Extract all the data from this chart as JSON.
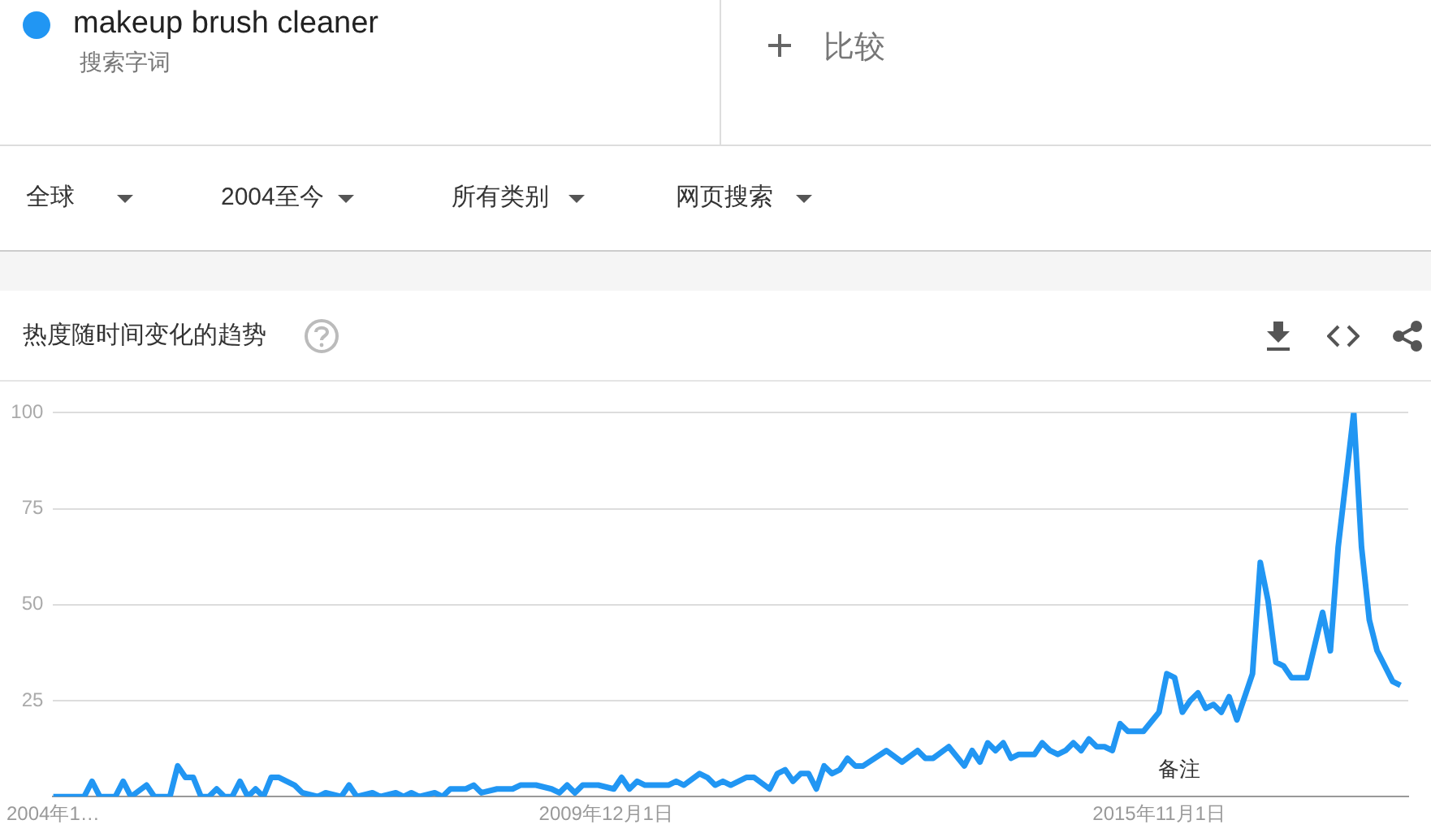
{
  "chart_data": {
    "type": "line",
    "title": "热度随时间变化的趋势",
    "annotations": [
      "搜索字词",
      "比较",
      "全球",
      "2004至今",
      "所有类别",
      "网页搜索",
      "备注"
    ],
    "legend": "top left",
    "grid": "y",
    "marker": "none",
    "line_style": "solid",
    "xlim": [
      "2004-01",
      "2018-07"
    ],
    "xticks": [
      {
        "value": "2004-01",
        "label": "2004年1…"
      },
      {
        "value": "2009-12",
        "label": "2009年12月1日"
      },
      {
        "value": "2015-11",
        "label": "2015年11月1日"
      }
    ],
    "ylim": [
      0,
      100
    ],
    "yticks": [
      {
        "value": 0,
        "label": null
      },
      25,
      50,
      75,
      100
    ],
    "series": [
      {
        "name": "makeup brush cleaner",
        "color": "#2196f3",
        "x": [
          "2004-01",
          "2004-05",
          "2004-06",
          "2004-07",
          "2004-09",
          "2004-10",
          "2004-11",
          "2005-01",
          "2005-02",
          "2005-04",
          "2005-05",
          "2005-06",
          "2005-07",
          "2005-08",
          "2005-09",
          "2005-10",
          "2005-11",
          "2005-12",
          "2006-01",
          "2006-02",
          "2006-03",
          "2006-04",
          "2006-05",
          "2006-06",
          "2006-08",
          "2006-09",
          "2006-11",
          "2006-12",
          "2007-02",
          "2007-03",
          "2007-04",
          "2007-06",
          "2007-07",
          "2007-09",
          "2007-10",
          "2007-11",
          "2007-12",
          "2008-02",
          "2008-03",
          "2008-04",
          "2008-06",
          "2008-07",
          "2008-08",
          "2008-10",
          "2008-12",
          "2009-01",
          "2009-03",
          "2009-05",
          "2009-06",
          "2009-07",
          "2009-08",
          "2009-09",
          "2009-11",
          "2010-01",
          "2010-02",
          "2010-03",
          "2010-04",
          "2010-05",
          "2010-08",
          "2010-09",
          "2010-10",
          "2010-12",
          "2011-01",
          "2011-02",
          "2011-03",
          "2011-04",
          "2011-06",
          "2011-07",
          "2011-09",
          "2011-10",
          "2011-11",
          "2011-12",
          "2012-01",
          "2012-02",
          "2012-03",
          "2012-04",
          "2012-05",
          "2012-06",
          "2012-07",
          "2012-08",
          "2012-09",
          "2012-12",
          "2013-02",
          "2013-04",
          "2013-05",
          "2013-06",
          "2013-08",
          "2013-10",
          "2013-11",
          "2013-12",
          "2014-01",
          "2014-02",
          "2014-03",
          "2014-04",
          "2014-05",
          "2014-07",
          "2014-08",
          "2014-09",
          "2014-10",
          "2014-11",
          "2014-12",
          "2015-01",
          "2015-02",
          "2015-03",
          "2015-04",
          "2015-05",
          "2015-06",
          "2015-07",
          "2015-08",
          "2015-09",
          "2015-11",
          "2015-12",
          "2016-01",
          "2016-02",
          "2016-03",
          "2016-04",
          "2016-05",
          "2016-06",
          "2016-07",
          "2016-08",
          "2016-09",
          "2016-11",
          "2016-12",
          "2017-01",
          "2017-02",
          "2017-03",
          "2017-04",
          "2017-06",
          "2017-08",
          "2017-09",
          "2017-10",
          "2017-12",
          "2018-01",
          "2018-02",
          "2018-03",
          "2018-05",
          "2018-06"
        ],
        "values": [
          0,
          0,
          4,
          0,
          0,
          4,
          0,
          3,
          0,
          0,
          8,
          5,
          5,
          0,
          0,
          2,
          0,
          0,
          4,
          0,
          2,
          0,
          5,
          5,
          3,
          1,
          0,
          1,
          0,
          3,
          0,
          1,
          0,
          1,
          0,
          1,
          0,
          1,
          0,
          2,
          2,
          3,
          1,
          2,
          2,
          3,
          3,
          2,
          1,
          3,
          1,
          3,
          3,
          2,
          5,
          2,
          4,
          3,
          3,
          4,
          3,
          6,
          5,
          3,
          4,
          3,
          5,
          5,
          2,
          6,
          7,
          4,
          6,
          6,
          2,
          8,
          6,
          7,
          10,
          8,
          8,
          12,
          9,
          12,
          10,
          10,
          13,
          8,
          12,
          9,
          14,
          12,
          14,
          10,
          11,
          11,
          14,
          12,
          11,
          12,
          14,
          12,
          15,
          13,
          13,
          12,
          19,
          17,
          17,
          17,
          22,
          32,
          31,
          22,
          25,
          27,
          23,
          24,
          22,
          26,
          20,
          32,
          61,
          51,
          35,
          34,
          31,
          31,
          48,
          38,
          65,
          100,
          65,
          46,
          38,
          30,
          29
        ]
      }
    ]
  }
}
